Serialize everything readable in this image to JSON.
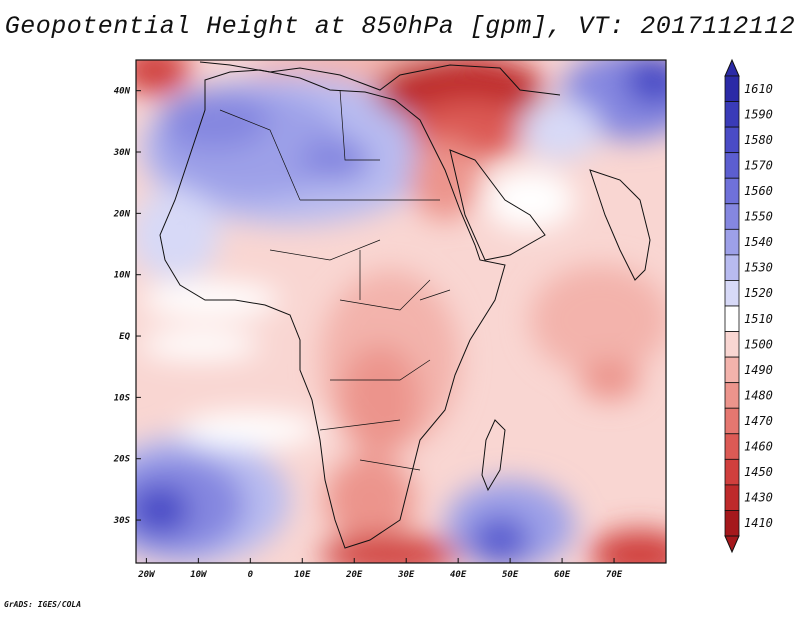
{
  "title": "Geopotential Height at 850hPa [gpm], VT: 2017112112",
  "footer": "GrADS: IGES/COLA",
  "map": {
    "lon_range": [
      -22,
      80
    ],
    "lat_range": [
      -37,
      45
    ],
    "x_ticks": [
      "20W",
      "10W",
      "0",
      "10E",
      "20E",
      "30E",
      "40E",
      "50E",
      "60E",
      "70E"
    ],
    "x_tick_values": [
      -20,
      -10,
      0,
      10,
      20,
      30,
      40,
      50,
      60,
      70
    ],
    "y_ticks": [
      "40N",
      "30N",
      "20N",
      "10N",
      "EQ",
      "10S",
      "20S",
      "30S"
    ],
    "y_tick_values": [
      40,
      30,
      20,
      10,
      0,
      -10,
      -20,
      -30
    ]
  },
  "colorbar": {
    "labels": [
      "1610",
      "1590",
      "1580",
      "1570",
      "1560",
      "1550",
      "1540",
      "1530",
      "1520",
      "1510",
      "1500",
      "1490",
      "1480",
      "1470",
      "1460",
      "1450",
      "1430",
      "1410"
    ],
    "colors": [
      "#2b2aa6",
      "#3a3bb8",
      "#4a4cc6",
      "#5c5ed0",
      "#6f71d9",
      "#8587e0",
      "#9da0e8",
      "#b8bbf0",
      "#d7d9f7",
      "#ffffff",
      "#f9d6d2",
      "#f3b3ac",
      "#ec948c",
      "#e57770",
      "#dc5a55",
      "#d03f3d",
      "#be2a2b",
      "#a5181c"
    ]
  }
}
